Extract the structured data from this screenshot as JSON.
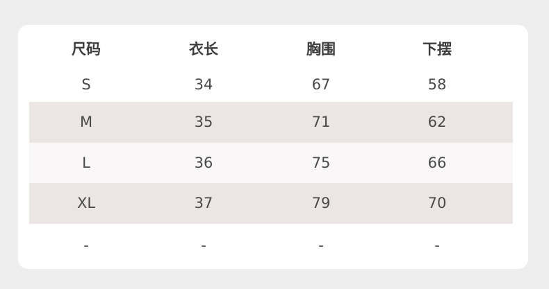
{
  "table": {
    "headers": [
      "尺码",
      "衣长",
      "胸围",
      "下摆"
    ],
    "rows": [
      [
        "S",
        "34",
        "67",
        "58"
      ],
      [
        "M",
        "35",
        "71",
        "62"
      ],
      [
        "L",
        "36",
        "75",
        "66"
      ],
      [
        "XL",
        "37",
        "79",
        "70"
      ],
      [
        "-",
        "-",
        "-",
        "-"
      ]
    ]
  },
  "colors": {
    "background": "#ededed",
    "card": "#ffffff",
    "band": "#ebe6e3",
    "light_band": "#f9f7f7"
  }
}
